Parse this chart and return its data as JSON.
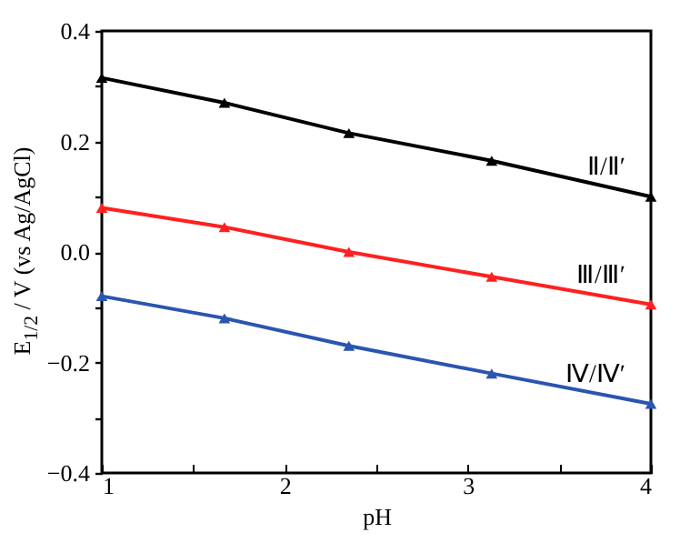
{
  "chart_data": {
    "type": "line",
    "xlabel": "pH",
    "ylabel": "E$_{1/2}$ / V (vs Ag/AgCl)",
    "x": [
      1,
      1.67,
      2.35,
      3.13,
      4
    ],
    "series": [
      {
        "name": "Ⅱ/Ⅱ′",
        "color": "#000000",
        "values": [
          0.315,
          0.27,
          0.215,
          0.165,
          0.1
        ]
      },
      {
        "name": "Ⅲ/Ⅲ′",
        "color": "#ff2020",
        "values": [
          0.08,
          0.045,
          0.0,
          -0.045,
          -0.095
        ]
      },
      {
        "name": "Ⅳ/Ⅳ′",
        "color": "#2a55b0",
        "values": [
          -0.08,
          -0.12,
          -0.17,
          -0.22,
          -0.275
        ]
      }
    ],
    "xlim": [
      1,
      4
    ],
    "xticks": [
      1,
      {
        "value": 1.5,
        "label": null
      },
      2,
      {
        "value": 2.5,
        "label": null
      },
      3,
      {
        "value": 3.5,
        "label": null
      },
      4
    ],
    "ylim": [
      -0.4,
      0.4
    ],
    "yticks": [
      {
        "value": -0.4,
        "label": "−0.4"
      },
      {
        "value": -0.3,
        "label": null
      },
      {
        "value": -0.2,
        "label": "−0.2"
      },
      {
        "value": -0.1,
        "label": null
      },
      {
        "value": 0,
        "label": "0.0"
      },
      {
        "value": 0.1,
        "label": null
      },
      0.2,
      {
        "value": 0.3,
        "label": null
      },
      0.4
    ],
    "grid": false,
    "legend": false,
    "marker": "triangle",
    "line_style": "solid"
  }
}
